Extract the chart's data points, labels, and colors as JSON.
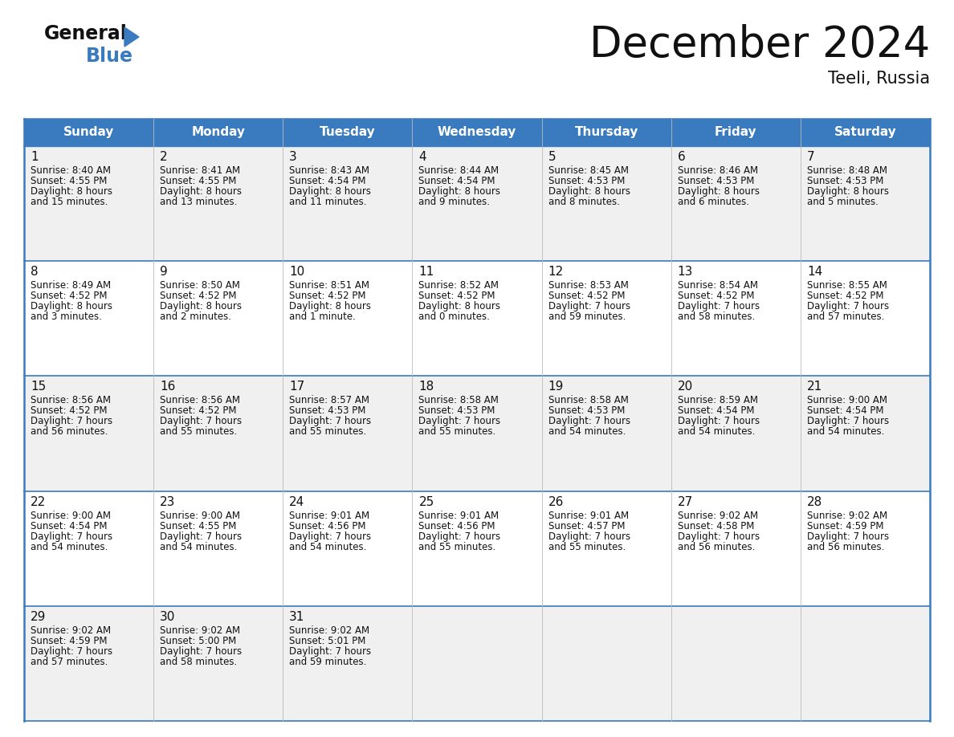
{
  "title": "December 2024",
  "subtitle": "Teeli, Russia",
  "header_color": "#3a7bbf",
  "header_text_color": "#ffffff",
  "bg_color": "#ffffff",
  "cell_bg_odd": "#f0f0f0",
  "cell_bg_even": "#ffffff",
  "border_color": "#3a7bbf",
  "day_names": [
    "Sunday",
    "Monday",
    "Tuesday",
    "Wednesday",
    "Thursday",
    "Friday",
    "Saturday"
  ],
  "days": [
    {
      "day": 1,
      "col": 0,
      "row": 0,
      "sunrise": "8:40 AM",
      "sunset": "4:55 PM",
      "dl1": "Daylight: 8 hours",
      "dl2": "and 15 minutes."
    },
    {
      "day": 2,
      "col": 1,
      "row": 0,
      "sunrise": "8:41 AM",
      "sunset": "4:55 PM",
      "dl1": "Daylight: 8 hours",
      "dl2": "and 13 minutes."
    },
    {
      "day": 3,
      "col": 2,
      "row": 0,
      "sunrise": "8:43 AM",
      "sunset": "4:54 PM",
      "dl1": "Daylight: 8 hours",
      "dl2": "and 11 minutes."
    },
    {
      "day": 4,
      "col": 3,
      "row": 0,
      "sunrise": "8:44 AM",
      "sunset": "4:54 PM",
      "dl1": "Daylight: 8 hours",
      "dl2": "and 9 minutes."
    },
    {
      "day": 5,
      "col": 4,
      "row": 0,
      "sunrise": "8:45 AM",
      "sunset": "4:53 PM",
      "dl1": "Daylight: 8 hours",
      "dl2": "and 8 minutes."
    },
    {
      "day": 6,
      "col": 5,
      "row": 0,
      "sunrise": "8:46 AM",
      "sunset": "4:53 PM",
      "dl1": "Daylight: 8 hours",
      "dl2": "and 6 minutes."
    },
    {
      "day": 7,
      "col": 6,
      "row": 0,
      "sunrise": "8:48 AM",
      "sunset": "4:53 PM",
      "dl1": "Daylight: 8 hours",
      "dl2": "and 5 minutes."
    },
    {
      "day": 8,
      "col": 0,
      "row": 1,
      "sunrise": "8:49 AM",
      "sunset": "4:52 PM",
      "dl1": "Daylight: 8 hours",
      "dl2": "and 3 minutes."
    },
    {
      "day": 9,
      "col": 1,
      "row": 1,
      "sunrise": "8:50 AM",
      "sunset": "4:52 PM",
      "dl1": "Daylight: 8 hours",
      "dl2": "and 2 minutes."
    },
    {
      "day": 10,
      "col": 2,
      "row": 1,
      "sunrise": "8:51 AM",
      "sunset": "4:52 PM",
      "dl1": "Daylight: 8 hours",
      "dl2": "and 1 minute."
    },
    {
      "day": 11,
      "col": 3,
      "row": 1,
      "sunrise": "8:52 AM",
      "sunset": "4:52 PM",
      "dl1": "Daylight: 8 hours",
      "dl2": "and 0 minutes."
    },
    {
      "day": 12,
      "col": 4,
      "row": 1,
      "sunrise": "8:53 AM",
      "sunset": "4:52 PM",
      "dl1": "Daylight: 7 hours",
      "dl2": "and 59 minutes."
    },
    {
      "day": 13,
      "col": 5,
      "row": 1,
      "sunrise": "8:54 AM",
      "sunset": "4:52 PM",
      "dl1": "Daylight: 7 hours",
      "dl2": "and 58 minutes."
    },
    {
      "day": 14,
      "col": 6,
      "row": 1,
      "sunrise": "8:55 AM",
      "sunset": "4:52 PM",
      "dl1": "Daylight: 7 hours",
      "dl2": "and 57 minutes."
    },
    {
      "day": 15,
      "col": 0,
      "row": 2,
      "sunrise": "8:56 AM",
      "sunset": "4:52 PM",
      "dl1": "Daylight: 7 hours",
      "dl2": "and 56 minutes."
    },
    {
      "day": 16,
      "col": 1,
      "row": 2,
      "sunrise": "8:56 AM",
      "sunset": "4:52 PM",
      "dl1": "Daylight: 7 hours",
      "dl2": "and 55 minutes."
    },
    {
      "day": 17,
      "col": 2,
      "row": 2,
      "sunrise": "8:57 AM",
      "sunset": "4:53 PM",
      "dl1": "Daylight: 7 hours",
      "dl2": "and 55 minutes."
    },
    {
      "day": 18,
      "col": 3,
      "row": 2,
      "sunrise": "8:58 AM",
      "sunset": "4:53 PM",
      "dl1": "Daylight: 7 hours",
      "dl2": "and 55 minutes."
    },
    {
      "day": 19,
      "col": 4,
      "row": 2,
      "sunrise": "8:58 AM",
      "sunset": "4:53 PM",
      "dl1": "Daylight: 7 hours",
      "dl2": "and 54 minutes."
    },
    {
      "day": 20,
      "col": 5,
      "row": 2,
      "sunrise": "8:59 AM",
      "sunset": "4:54 PM",
      "dl1": "Daylight: 7 hours",
      "dl2": "and 54 minutes."
    },
    {
      "day": 21,
      "col": 6,
      "row": 2,
      "sunrise": "9:00 AM",
      "sunset": "4:54 PM",
      "dl1": "Daylight: 7 hours",
      "dl2": "and 54 minutes."
    },
    {
      "day": 22,
      "col": 0,
      "row": 3,
      "sunrise": "9:00 AM",
      "sunset": "4:54 PM",
      "dl1": "Daylight: 7 hours",
      "dl2": "and 54 minutes."
    },
    {
      "day": 23,
      "col": 1,
      "row": 3,
      "sunrise": "9:00 AM",
      "sunset": "4:55 PM",
      "dl1": "Daylight: 7 hours",
      "dl2": "and 54 minutes."
    },
    {
      "day": 24,
      "col": 2,
      "row": 3,
      "sunrise": "9:01 AM",
      "sunset": "4:56 PM",
      "dl1": "Daylight: 7 hours",
      "dl2": "and 54 minutes."
    },
    {
      "day": 25,
      "col": 3,
      "row": 3,
      "sunrise": "9:01 AM",
      "sunset": "4:56 PM",
      "dl1": "Daylight: 7 hours",
      "dl2": "and 55 minutes."
    },
    {
      "day": 26,
      "col": 4,
      "row": 3,
      "sunrise": "9:01 AM",
      "sunset": "4:57 PM",
      "dl1": "Daylight: 7 hours",
      "dl2": "and 55 minutes."
    },
    {
      "day": 27,
      "col": 5,
      "row": 3,
      "sunrise": "9:02 AM",
      "sunset": "4:58 PM",
      "dl1": "Daylight: 7 hours",
      "dl2": "and 56 minutes."
    },
    {
      "day": 28,
      "col": 6,
      "row": 3,
      "sunrise": "9:02 AM",
      "sunset": "4:59 PM",
      "dl1": "Daylight: 7 hours",
      "dl2": "and 56 minutes."
    },
    {
      "day": 29,
      "col": 0,
      "row": 4,
      "sunrise": "9:02 AM",
      "sunset": "4:59 PM",
      "dl1": "Daylight: 7 hours",
      "dl2": "and 57 minutes."
    },
    {
      "day": 30,
      "col": 1,
      "row": 4,
      "sunrise": "9:02 AM",
      "sunset": "5:00 PM",
      "dl1": "Daylight: 7 hours",
      "dl2": "and 58 minutes."
    },
    {
      "day": 31,
      "col": 2,
      "row": 4,
      "sunrise": "9:02 AM",
      "sunset": "5:01 PM",
      "dl1": "Daylight: 7 hours",
      "dl2": "and 59 minutes."
    }
  ],
  "title_fontsize": 38,
  "subtitle_fontsize": 15,
  "day_num_fontsize": 11,
  "cell_text_fontsize": 8.5,
  "header_fontsize": 11
}
